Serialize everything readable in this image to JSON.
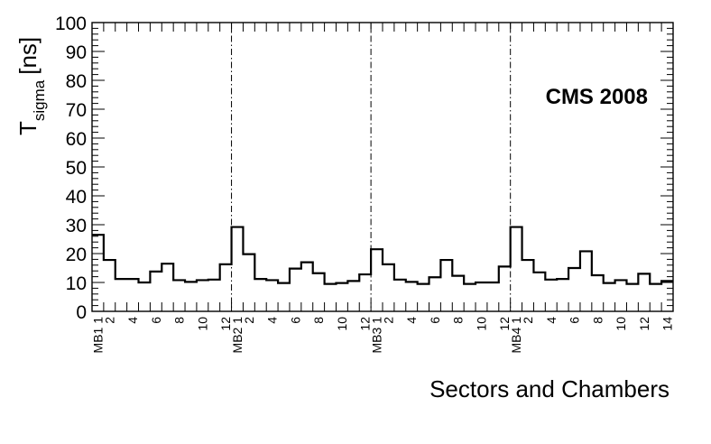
{
  "chart_data": {
    "type": "histogram",
    "title": "",
    "annotation": "CMS 2008",
    "xlabel": "Sectors and Chambers",
    "ylabel_main": "T",
    "ylabel_sub": "sigma",
    "ylabel_unit": "[ns]",
    "ylim": [
      0,
      100
    ],
    "y_ticks": [
      0,
      10,
      20,
      30,
      40,
      50,
      60,
      70,
      80,
      90,
      100
    ],
    "grid": false,
    "step_color": "#000000",
    "groups": [
      {
        "name": "MB1",
        "start_label": "MB1 1",
        "bins": 12
      },
      {
        "name": "MB2",
        "start_label": "MB2 1",
        "bins": 12
      },
      {
        "name": "MB3",
        "start_label": "MB3 1",
        "bins": 12
      },
      {
        "name": "MB4",
        "start_label": "MB4 1",
        "bins": 14
      }
    ],
    "x_tick_labels": [
      "MB1 1",
      "2",
      "",
      "4",
      "",
      "6",
      "",
      "8",
      "",
      "10",
      "",
      "12",
      "MB2 1",
      "2",
      "",
      "4",
      "",
      "6",
      "",
      "8",
      "",
      "10",
      "",
      "12",
      "MB3 1",
      "2",
      "",
      "4",
      "",
      "6",
      "",
      "8",
      "",
      "10",
      "",
      "12",
      "MB4 1",
      "2",
      "",
      "4",
      "",
      "6",
      "",
      "8",
      "",
      "10",
      "",
      "12",
      "",
      "14"
    ],
    "values": [
      26.5,
      17.8,
      11.2,
      11.2,
      10.0,
      13.8,
      16.5,
      10.8,
      10.2,
      10.8,
      11.0,
      16.3,
      29.2,
      19.8,
      11.2,
      10.8,
      9.8,
      14.8,
      17.0,
      13.2,
      9.5,
      9.8,
      10.5,
      12.8,
      21.5,
      16.3,
      11.0,
      10.2,
      9.5,
      11.8,
      17.8,
      12.3,
      9.5,
      10.0,
      10.0,
      15.5,
      29.2,
      17.8,
      13.5,
      11.0,
      11.2,
      15.0,
      20.8,
      12.5,
      9.8,
      10.8,
      9.5,
      13.0,
      9.5,
      10.5
    ]
  }
}
